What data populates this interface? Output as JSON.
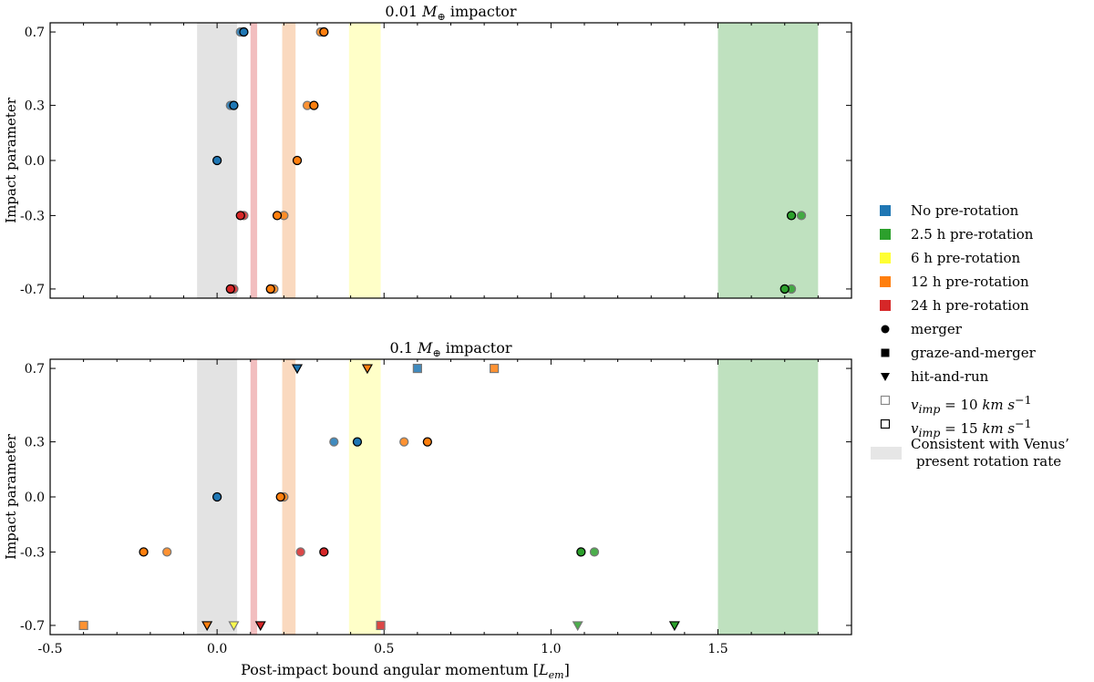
{
  "chart_data": [
    {
      "type": "scatter",
      "title": "0.01 M⊕ impactor",
      "title_parts": {
        "prefix": "0.01 ",
        "symbol": "M",
        "subscript": "⊕",
        "suffix": " impactor"
      },
      "ylabel": "Impact parameter",
      "xlabel": "",
      "xlim": [
        -0.5,
        1.9
      ],
      "ylim": [
        -0.75,
        0.75
      ],
      "y_ticks": [
        "0.7",
        "0.3",
        "0.0",
        "-0.3",
        "-0.7"
      ],
      "y_tick_values": [
        0.7,
        0.3,
        0.0,
        -0.3,
        -0.7
      ],
      "x_tick_labels_shown": false,
      "grid": false,
      "bands": [
        {
          "name": "Venus present rotation rate",
          "x": [
            -0.06,
            0.06
          ],
          "color": "#cccccc"
        },
        {
          "name": "24 h pre-rotation",
          "x": [
            0.1,
            0.12
          ],
          "color": "#e8898a"
        },
        {
          "name": "12 h pre-rotation",
          "x": [
            0.195,
            0.235
          ],
          "color": "#f5b98a"
        },
        {
          "name": "6 h pre-rotation",
          "x": [
            0.395,
            0.49
          ],
          "color": "#ffff9a"
        },
        {
          "name": "2.5 h pre-rotation",
          "x": [
            1.5,
            1.8
          ],
          "color": "#8bc98b"
        }
      ],
      "points": [
        {
          "x": 0.07,
          "y": 0.7,
          "rotation": "none",
          "outcome": "merger",
          "v": 10
        },
        {
          "x": 0.08,
          "y": 0.7,
          "rotation": "none",
          "outcome": "merger",
          "v": 15
        },
        {
          "x": 0.31,
          "y": 0.7,
          "rotation": "12h",
          "outcome": "merger",
          "v": 10
        },
        {
          "x": 0.32,
          "y": 0.7,
          "rotation": "12h",
          "outcome": "merger",
          "v": 15
        },
        {
          "x": 0.04,
          "y": 0.3,
          "rotation": "none",
          "outcome": "merger",
          "v": 10
        },
        {
          "x": 0.05,
          "y": 0.3,
          "rotation": "none",
          "outcome": "merger",
          "v": 15
        },
        {
          "x": 0.27,
          "y": 0.3,
          "rotation": "12h",
          "outcome": "merger",
          "v": 10
        },
        {
          "x": 0.29,
          "y": 0.3,
          "rotation": "12h",
          "outcome": "merger",
          "v": 15
        },
        {
          "x": 0.0,
          "y": 0.0,
          "rotation": "none",
          "outcome": "merger",
          "v": 15
        },
        {
          "x": 0.24,
          "y": 0.0,
          "rotation": "12h",
          "outcome": "merger",
          "v": 15
        },
        {
          "x": 0.08,
          "y": -0.3,
          "rotation": "24h",
          "outcome": "merger",
          "v": 10
        },
        {
          "x": 0.07,
          "y": -0.3,
          "rotation": "24h",
          "outcome": "merger",
          "v": 15
        },
        {
          "x": 0.2,
          "y": -0.3,
          "rotation": "12h",
          "outcome": "merger",
          "v": 10
        },
        {
          "x": 0.18,
          "y": -0.3,
          "rotation": "12h",
          "outcome": "merger",
          "v": 15
        },
        {
          "x": 1.75,
          "y": -0.3,
          "rotation": "2.5h",
          "outcome": "merger",
          "v": 10
        },
        {
          "x": 1.72,
          "y": -0.3,
          "rotation": "2.5h",
          "outcome": "merger",
          "v": 15
        },
        {
          "x": 0.05,
          "y": -0.7,
          "rotation": "24h",
          "outcome": "merger",
          "v": 10
        },
        {
          "x": 0.04,
          "y": -0.7,
          "rotation": "24h",
          "outcome": "merger",
          "v": 15
        },
        {
          "x": 0.17,
          "y": -0.7,
          "rotation": "12h",
          "outcome": "merger",
          "v": 10
        },
        {
          "x": 0.16,
          "y": -0.7,
          "rotation": "12h",
          "outcome": "merger",
          "v": 15
        },
        {
          "x": 1.72,
          "y": -0.7,
          "rotation": "2.5h",
          "outcome": "merger",
          "v": 10
        },
        {
          "x": 1.7,
          "y": -0.7,
          "rotation": "2.5h",
          "outcome": "merger",
          "v": 15
        }
      ]
    },
    {
      "type": "scatter",
      "title": "0.1 M⊕ impactor",
      "title_parts": {
        "prefix": "0.1 ",
        "symbol": "M",
        "subscript": "⊕",
        "suffix": " impactor"
      },
      "ylabel": "Impact parameter",
      "xlabel": "Post-impact bound angular momentum [Lem]",
      "xlabel_parts": {
        "prefix": "Post-impact bound angular momentum [",
        "symbol": "L",
        "subscript": "em",
        "suffix": "]"
      },
      "xlim": [
        -0.5,
        1.9
      ],
      "ylim": [
        -0.75,
        0.75
      ],
      "x_ticks": [
        "-0.5",
        "0.0",
        "0.5",
        "1.0",
        "1.5"
      ],
      "x_tick_values": [
        -0.5,
        0.0,
        0.5,
        1.0,
        1.5
      ],
      "y_ticks": [
        "0.7",
        "0.3",
        "0.0",
        "-0.3",
        "-0.7"
      ],
      "y_tick_values": [
        0.7,
        0.3,
        0.0,
        -0.3,
        -0.7
      ],
      "grid": false,
      "bands": [
        {
          "name": "Venus present rotation rate",
          "x": [
            -0.06,
            0.06
          ],
          "color": "#cccccc"
        },
        {
          "name": "24 h pre-rotation",
          "x": [
            0.1,
            0.12
          ],
          "color": "#e8898a"
        },
        {
          "name": "12 h pre-rotation",
          "x": [
            0.195,
            0.235
          ],
          "color": "#f5b98a"
        },
        {
          "name": "6 h pre-rotation",
          "x": [
            0.395,
            0.49
          ],
          "color": "#ffff9a"
        },
        {
          "name": "2.5 h pre-rotation",
          "x": [
            1.5,
            1.8
          ],
          "color": "#8bc98b"
        }
      ],
      "points": [
        {
          "x": 0.24,
          "y": 0.7,
          "rotation": "none",
          "outcome": "hit-and-run",
          "v": 15
        },
        {
          "x": 0.45,
          "y": 0.7,
          "rotation": "12h",
          "outcome": "hit-and-run",
          "v": 15
        },
        {
          "x": 0.6,
          "y": 0.7,
          "rotation": "none",
          "outcome": "graze-and-merger",
          "v": 10
        },
        {
          "x": 0.83,
          "y": 0.7,
          "rotation": "12h",
          "outcome": "graze-and-merger",
          "v": 10
        },
        {
          "x": 0.35,
          "y": 0.3,
          "rotation": "none",
          "outcome": "merger",
          "v": 10
        },
        {
          "x": 0.42,
          "y": 0.3,
          "rotation": "none",
          "outcome": "merger",
          "v": 15
        },
        {
          "x": 0.56,
          "y": 0.3,
          "rotation": "12h",
          "outcome": "merger",
          "v": 10
        },
        {
          "x": 0.63,
          "y": 0.3,
          "rotation": "12h",
          "outcome": "merger",
          "v": 15
        },
        {
          "x": 0.0,
          "y": 0.0,
          "rotation": "none",
          "outcome": "merger",
          "v": 15
        },
        {
          "x": 0.2,
          "y": 0.0,
          "rotation": "12h",
          "outcome": "merger",
          "v": 10
        },
        {
          "x": 0.19,
          "y": 0.0,
          "rotation": "12h",
          "outcome": "merger",
          "v": 15
        },
        {
          "x": -0.22,
          "y": -0.3,
          "rotation": "12h",
          "outcome": "merger",
          "v": 15
        },
        {
          "x": -0.15,
          "y": -0.3,
          "rotation": "12h",
          "outcome": "merger",
          "v": 10
        },
        {
          "x": 0.25,
          "y": -0.3,
          "rotation": "24h",
          "outcome": "merger",
          "v": 10
        },
        {
          "x": 0.32,
          "y": -0.3,
          "rotation": "24h",
          "outcome": "merger",
          "v": 15
        },
        {
          "x": 1.09,
          "y": -0.3,
          "rotation": "2.5h",
          "outcome": "merger",
          "v": 15
        },
        {
          "x": 1.13,
          "y": -0.3,
          "rotation": "2.5h",
          "outcome": "merger",
          "v": 10
        },
        {
          "x": -0.4,
          "y": -0.7,
          "rotation": "12h",
          "outcome": "graze-and-merger",
          "v": 10
        },
        {
          "x": -0.03,
          "y": -0.7,
          "rotation": "12h",
          "outcome": "hit-and-run",
          "v": 15
        },
        {
          "x": 0.05,
          "y": -0.7,
          "rotation": "6h",
          "outcome": "hit-and-run",
          "v": 10
        },
        {
          "x": 0.13,
          "y": -0.7,
          "rotation": "24h",
          "outcome": "hit-and-run",
          "v": 15
        },
        {
          "x": 0.49,
          "y": -0.7,
          "rotation": "24h",
          "outcome": "graze-and-merger",
          "v": 10
        },
        {
          "x": 1.08,
          "y": -0.7,
          "rotation": "2.5h",
          "outcome": "hit-and-run",
          "v": 10
        },
        {
          "x": 1.37,
          "y": -0.7,
          "rotation": "2.5h",
          "outcome": "hit-and-run",
          "v": 15
        }
      ]
    }
  ],
  "colors": {
    "none": "#1f77b4",
    "2.5h": "#2ca02c",
    "6h": "#ffff33",
    "12h": "#ff7f0e",
    "24h": "#d62728"
  },
  "legend": {
    "rotation": [
      {
        "label": "No pre-rotation",
        "color": "#1f77b4"
      },
      {
        "label": "2.5 h pre-rotation",
        "color": "#2ca02c"
      },
      {
        "label": "6 h pre-rotation",
        "color": "#ffff33"
      },
      {
        "label": "12 h pre-rotation",
        "color": "#ff7f0e"
      },
      {
        "label": "24 h pre-rotation",
        "color": "#d62728"
      }
    ],
    "outcome": [
      {
        "label": "merger",
        "marker": "circle"
      },
      {
        "label": "graze-and-merger",
        "marker": "square"
      },
      {
        "label": "hit-and-run",
        "marker": "triangle"
      }
    ],
    "velocity": [
      {
        "label": "vimp = 10 km s−1",
        "symbol": "v",
        "subscript": "imp",
        "expr": " = 10 ",
        "unit": "km s",
        "exponent": "−1",
        "edge": "#888888"
      },
      {
        "label": "vimp = 15 km s−1",
        "symbol": "v",
        "subscript": "imp",
        "expr": " = 15 ",
        "unit": "km s",
        "exponent": "−1",
        "edge": "#000000"
      }
    ],
    "span": {
      "line1": "Consistent with Venus’",
      "line2": "present rotation rate",
      "color": "#e6e6e6"
    }
  }
}
